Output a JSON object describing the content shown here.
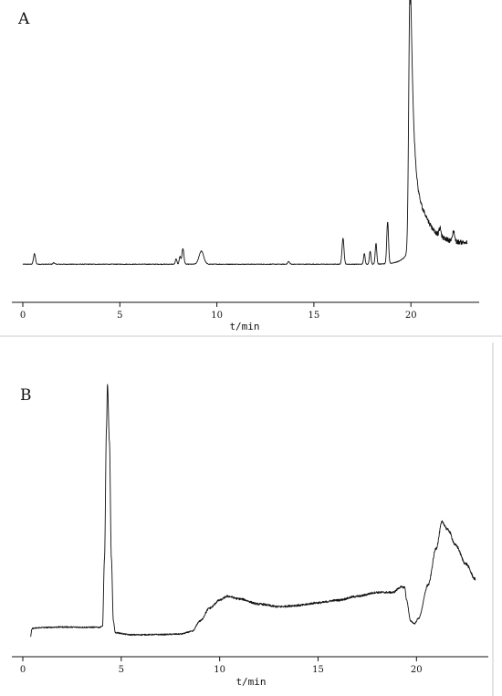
{
  "chart_data": [
    {
      "type": "line",
      "panel_label": "A",
      "xlabel": "t/min",
      "ylabel": "",
      "xlim": [
        0,
        23
      ],
      "ylim": [
        0,
        100
      ],
      "x_ticks": [
        0,
        5,
        10,
        15,
        20
      ],
      "baseline": 2,
      "peaks": [
        {
          "x": 0.6,
          "height": 4,
          "width": 0.05
        },
        {
          "x": 1.6,
          "height": 0.6,
          "width": 0.04
        },
        {
          "x": 7.9,
          "height": 2,
          "width": 0.04
        },
        {
          "x": 8.1,
          "height": 3,
          "width": 0.04
        },
        {
          "x": 8.25,
          "height": 6,
          "width": 0.05
        },
        {
          "x": 9.2,
          "height": 5,
          "width": 0.12
        },
        {
          "x": 13.7,
          "height": 1,
          "width": 0.05
        },
        {
          "x": 16.5,
          "height": 10,
          "width": 0.05
        },
        {
          "x": 17.6,
          "height": 4,
          "width": 0.04
        },
        {
          "x": 17.9,
          "height": 5,
          "width": 0.04
        },
        {
          "x": 18.2,
          "height": 8,
          "width": 0.04
        },
        {
          "x": 18.8,
          "height": 16,
          "width": 0.045
        },
        {
          "x": 21.5,
          "height": 3,
          "width": 0.05
        },
        {
          "x": 22.2,
          "height": 4,
          "width": 0.05
        }
      ],
      "main_peak": {
        "x": 19.95,
        "height": 98
      },
      "tail_end": {
        "x": 22.9,
        "value": 10
      },
      "noise": 0.8
    },
    {
      "type": "line",
      "panel_label": "B",
      "xlabel": "t/min",
      "ylabel": "",
      "xlim": [
        0,
        23
      ],
      "ylim": [
        0,
        100
      ],
      "x_ticks": [
        0,
        5,
        10,
        15,
        20
      ],
      "profile": [
        [
          0.4,
          0
        ],
        [
          0.45,
          2.5
        ],
        [
          0.5,
          3.2
        ],
        [
          1.0,
          3.5
        ],
        [
          2.0,
          3.7
        ],
        [
          3.0,
          3.6
        ],
        [
          3.9,
          3.6
        ],
        [
          4.05,
          4
        ],
        [
          4.15,
          30
        ],
        [
          4.25,
          80
        ],
        [
          4.3,
          97
        ],
        [
          4.4,
          75
        ],
        [
          4.5,
          30
        ],
        [
          4.6,
          6
        ],
        [
          4.7,
          1.5
        ],
        [
          5.5,
          0.7
        ],
        [
          7.0,
          0.8
        ],
        [
          8.0,
          1.0
        ],
        [
          8.6,
          2
        ],
        [
          9.0,
          6
        ],
        [
          9.5,
          11
        ],
        [
          10.0,
          14
        ],
        [
          10.4,
          15.5
        ],
        [
          11.0,
          14.5
        ],
        [
          12.0,
          12.5
        ],
        [
          13.0,
          11.5
        ],
        [
          14.0,
          12
        ],
        [
          15.0,
          13
        ],
        [
          16.0,
          14
        ],
        [
          17.0,
          15.5
        ],
        [
          18.0,
          17
        ],
        [
          18.8,
          17
        ],
        [
          19.2,
          19
        ],
        [
          19.4,
          19
        ],
        [
          19.5,
          14
        ],
        [
          19.7,
          6
        ],
        [
          19.9,
          5
        ],
        [
          20.1,
          7
        ],
        [
          20.6,
          20
        ],
        [
          21.0,
          34
        ],
        [
          21.3,
          44
        ],
        [
          21.6,
          41
        ],
        [
          22.0,
          35
        ],
        [
          22.5,
          28
        ],
        [
          23.0,
          22
        ]
      ],
      "noise": 0.5
    }
  ]
}
